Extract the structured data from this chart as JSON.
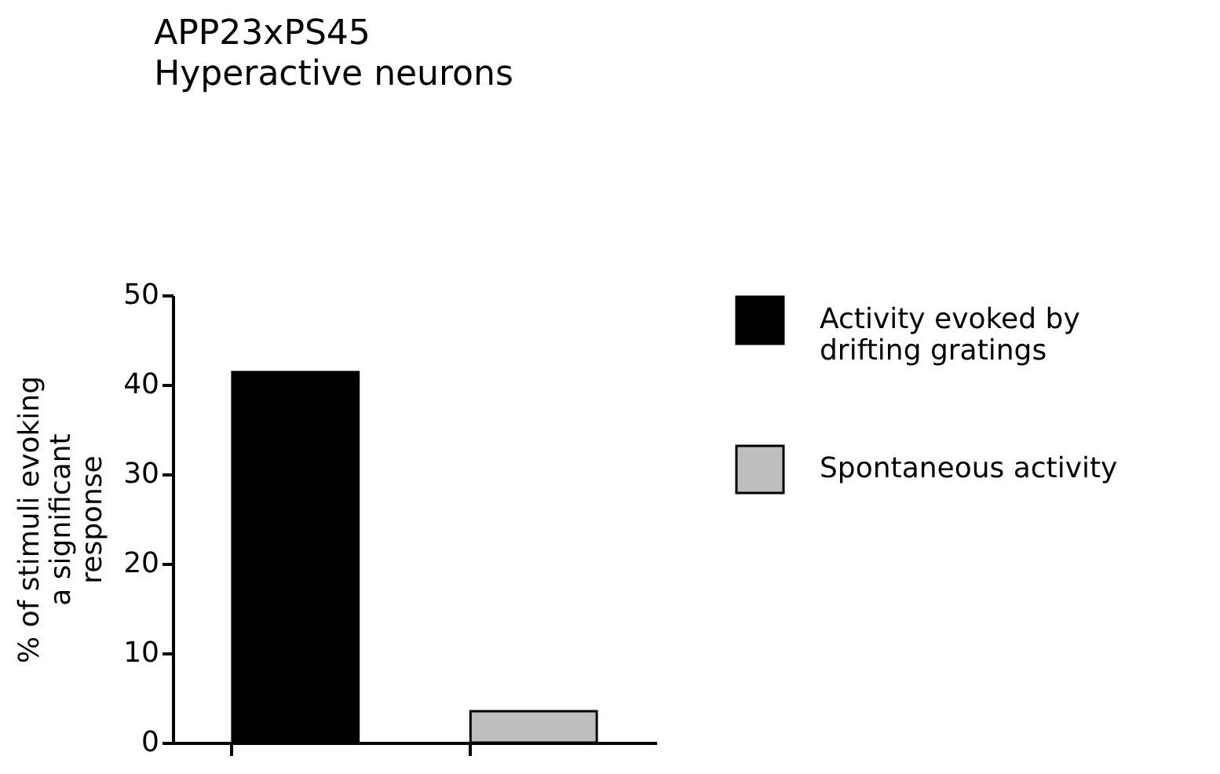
{
  "chart_data": {
    "type": "bar",
    "title": "APP23xPS45",
    "subtitle": "Hyperactive neurons",
    "ylabel": "% of stimuli evoking a significant response",
    "categories": [
      null,
      null
    ],
    "series": [
      {
        "name": "Activity evoked by drifting gratings",
        "color": "#000000",
        "values": [
          41.4,
          null
        ]
      },
      {
        "name": "Spontaneous activity",
        "color": "#bebebe",
        "values": [
          null,
          3.5
        ]
      }
    ],
    "ylim": [
      0,
      50
    ],
    "yticks": [
      0,
      10,
      20,
      30,
      40,
      50
    ],
    "grid": false,
    "legend": "right"
  }
}
